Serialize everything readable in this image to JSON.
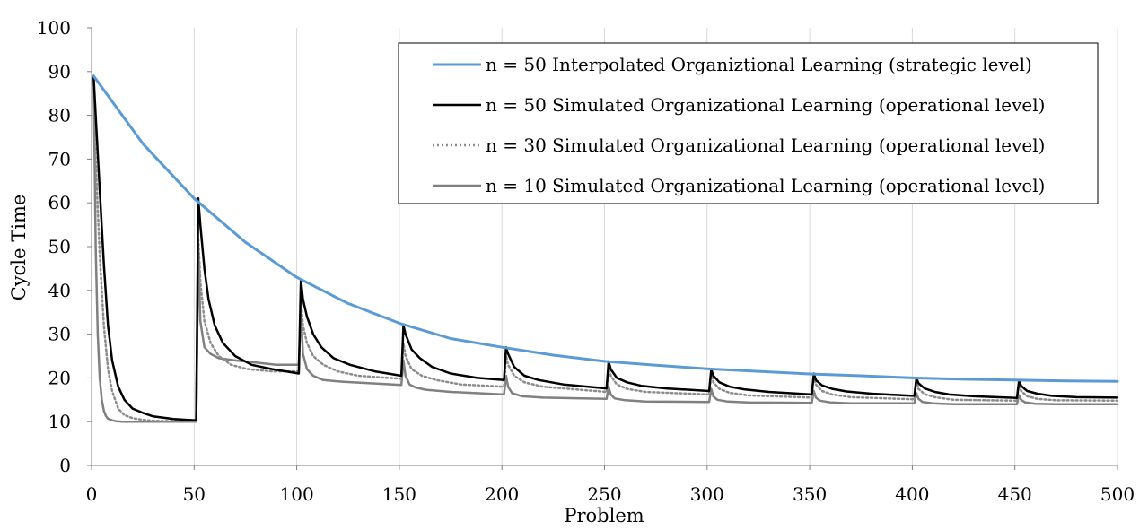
{
  "chart_data": {
    "type": "line",
    "title": "",
    "xlabel": "Problem",
    "ylabel": "Cycle Time",
    "xlim": [
      0,
      500
    ],
    "ylim": [
      0,
      100
    ],
    "xticks": [
      0,
      50,
      100,
      150,
      200,
      250,
      300,
      350,
      400,
      450,
      500
    ],
    "yticks": [
      0,
      10,
      20,
      30,
      40,
      50,
      60,
      70,
      80,
      90,
      100
    ],
    "grid": "vertical",
    "legend_position": "top-right",
    "colors": {
      "interpolated": "#5b9bd5",
      "n50": "#000000",
      "n30": "#8c8c8c",
      "n10": "#808080",
      "grid": "#d9d9d9",
      "axis": "#7f7f7f"
    },
    "series": [
      {
        "name": "n = 50 Interpolated Organiztional Learning (strategic level)",
        "style": "solid",
        "x": [
          1,
          25,
          50,
          75,
          100,
          125,
          150,
          175,
          200,
          225,
          250,
          275,
          300,
          325,
          350,
          375,
          400,
          425,
          450,
          475,
          500
        ],
        "y": [
          89,
          73.5,
          61,
          51,
          43,
          37,
          32.5,
          29,
          27,
          25.2,
          23.8,
          22.9,
          22.1,
          21.5,
          20.9,
          20.5,
          20,
          19.7,
          19.5,
          19.3,
          19.2
        ]
      },
      {
        "name": "n = 50 Simulated Organizational Learning (operational level)",
        "style": "solid",
        "x": [
          1,
          2,
          4,
          6,
          8,
          10,
          13,
          16,
          20,
          25,
          30,
          40,
          51,
          52,
          53,
          55,
          57,
          60,
          64,
          70,
          78,
          88,
          101,
          102,
          103,
          105,
          108,
          112,
          118,
          126,
          138,
          151,
          152,
          153,
          156,
          160,
          166,
          175,
          188,
          201,
          202,
          203,
          206,
          211,
          218,
          230,
          251,
          252,
          253,
          256,
          261,
          268,
          280,
          301,
          302,
          303,
          306,
          311,
          318,
          330,
          351,
          352,
          353,
          356,
          361,
          368,
          380,
          401,
          402,
          403,
          406,
          411,
          418,
          430,
          451,
          452,
          453,
          456,
          461,
          468,
          480,
          500
        ],
        "y": [
          89,
          80,
          63,
          46,
          32,
          24,
          18,
          15,
          13,
          12,
          11.2,
          10.6,
          10.3,
          61,
          55,
          45,
          38,
          32,
          28,
          25,
          23,
          22,
          21,
          42.5,
          38,
          34,
          30,
          27,
          24.5,
          23,
          21.5,
          20.5,
          32,
          30,
          26.5,
          24.5,
          22.5,
          21,
          20,
          19.5,
          27,
          25.5,
          22.5,
          20.5,
          19.5,
          18.5,
          17.6,
          23.8,
          22,
          20,
          19,
          18.2,
          17.6,
          17,
          22,
          20.5,
          19,
          18,
          17.4,
          16.8,
          16.2,
          21,
          19.5,
          18.3,
          17.5,
          16.9,
          16.4,
          15.9,
          20,
          18.8,
          17.6,
          16.8,
          16.2,
          15.8,
          15.4,
          19.4,
          18.2,
          17,
          16.4,
          15.9,
          15.6,
          15.5
        ]
      },
      {
        "name": "n = 30 Simulated Organizational Learning (operational level)",
        "style": "dotted",
        "x": [
          1,
          2,
          4,
          6,
          8,
          10,
          13,
          16,
          20,
          25,
          30,
          40,
          51,
          52,
          53,
          55,
          58,
          62,
          68,
          76,
          88,
          101,
          102,
          103,
          105,
          108,
          113,
          120,
          130,
          151,
          152,
          153,
          156,
          161,
          168,
          180,
          201,
          202,
          203,
          206,
          211,
          220,
          251,
          252,
          253,
          256,
          261,
          270,
          301,
          302,
          303,
          306,
          311,
          320,
          351,
          352,
          353,
          356,
          361,
          370,
          401,
          402,
          403,
          406,
          411,
          420,
          451,
          452,
          453,
          456,
          461,
          470,
          500
        ],
        "y": [
          89,
          70,
          48,
          32,
          22,
          17,
          13,
          11.5,
          10.8,
          10.4,
          10.2,
          10.1,
          10.1,
          52,
          42,
          33,
          28,
          25,
          23,
          22,
          21.5,
          21.5,
          38,
          32,
          28,
          25,
          23,
          21.5,
          20.5,
          19.8,
          28,
          25,
          22,
          20.5,
          19.5,
          18.5,
          18,
          25,
          23,
          20.5,
          19,
          18,
          16.8,
          22.5,
          20.5,
          18.5,
          17.5,
          16.8,
          16.2,
          21,
          19,
          17.5,
          16.6,
          16,
          15.5,
          20.5,
          18.5,
          17,
          16.2,
          15.6,
          15.1,
          19.5,
          17.5,
          16.3,
          15.6,
          15,
          14.8,
          18.8,
          17,
          15.8,
          15.2,
          14.9,
          14.8
        ]
      },
      {
        "name": "n = 10 Simulated Organizational Learning (operational level)",
        "style": "solid",
        "x": [
          1,
          2,
          3,
          4,
          5,
          6,
          7,
          8,
          10,
          12,
          15,
          20,
          30,
          51,
          52,
          53,
          55,
          58,
          62,
          70,
          80,
          90,
          100,
          101,
          102,
          103,
          105,
          108,
          113,
          120,
          135,
          151,
          152,
          153,
          155,
          158,
          163,
          175,
          201,
          202,
          203,
          205,
          210,
          220,
          251,
          252,
          253,
          255,
          260,
          270,
          301,
          302,
          303,
          305,
          310,
          320,
          351,
          352,
          353,
          355,
          360,
          370,
          401,
          402,
          403,
          405,
          410,
          420,
          451,
          452,
          453,
          455,
          460,
          470,
          500
        ],
        "y": [
          89,
          50,
          30,
          20,
          15,
          12.5,
          11.3,
          10.7,
          10.3,
          10.1,
          10,
          10,
          10,
          10,
          50,
          33,
          27,
          25.5,
          24.5,
          24,
          23.5,
          23,
          23,
          23,
          36,
          25.5,
          22,
          20.5,
          19.5,
          19.2,
          18.8,
          18.4,
          24,
          20.5,
          18.5,
          17.8,
          17.3,
          16.8,
          16.2,
          20.5,
          18,
          16.5,
          15.8,
          15.5,
          15.2,
          18,
          16.2,
          15.3,
          14.9,
          14.6,
          14.5,
          17.5,
          15.8,
          15,
          14.6,
          14.4,
          14.3,
          17,
          15.5,
          14.8,
          14.4,
          14.2,
          14.2,
          16.5,
          15.2,
          14.5,
          14.2,
          14,
          14,
          16,
          15,
          14.4,
          14.1,
          14,
          14
        ]
      }
    ]
  }
}
